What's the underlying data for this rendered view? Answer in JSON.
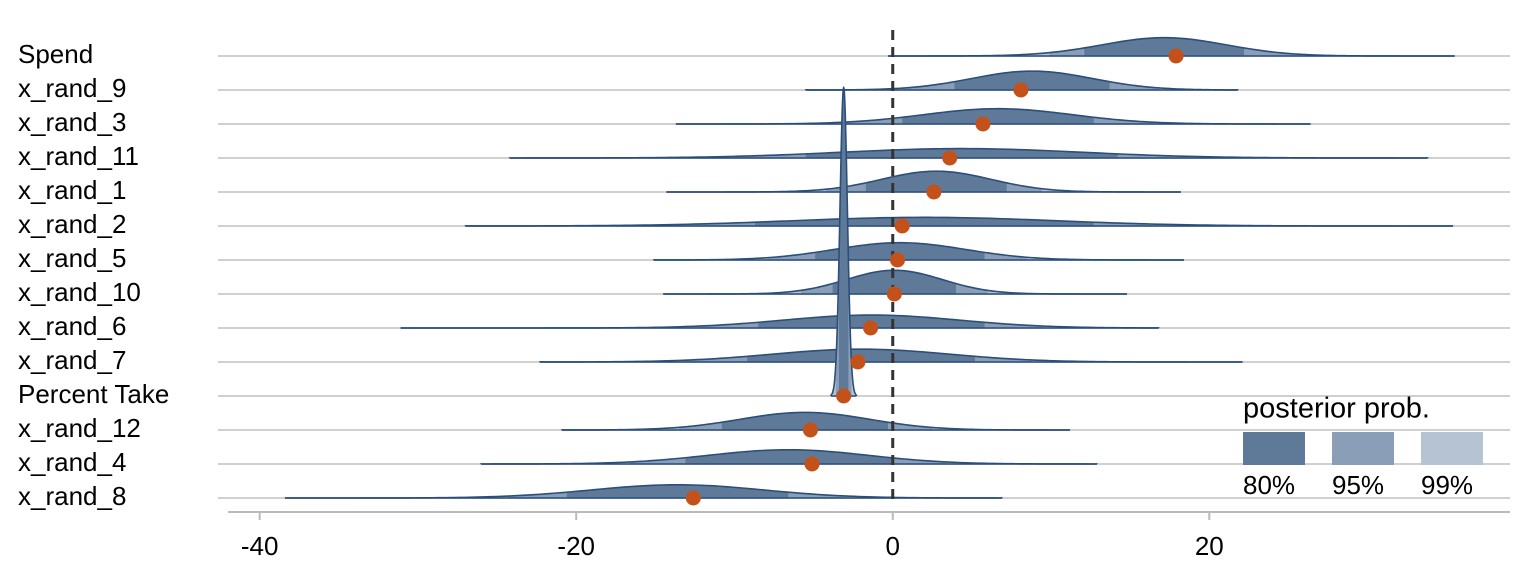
{
  "chart_data": {
    "type": "ridgeline",
    "series": [
      {
        "name": "Spend",
        "median": 17.9,
        "intervals": [
          [
            12.1,
            22.2
          ],
          [
            9.9,
            25.8
          ],
          [
            7.5,
            28.3
          ]
        ],
        "range": [
          -0.3,
          35.5
        ]
      },
      {
        "name": "x_rand_9",
        "median": 8.1,
        "intervals": [
          [
            3.9,
            13.7
          ],
          [
            0.6,
            16.8
          ],
          [
            -1.8,
            19.1
          ]
        ],
        "range": [
          -5.5,
          21.8
        ]
      },
      {
        "name": "x_rand_3",
        "median": 5.7,
        "intervals": [
          [
            0.6,
            12.7
          ],
          [
            -3.1,
            16.5
          ],
          [
            -6,
            19.4
          ]
        ],
        "range": [
          -13.7,
          26.4
        ]
      },
      {
        "name": "x_rand_11",
        "median": 3.6,
        "intervals": [
          [
            -5.5,
            14.2
          ],
          [
            -11.4,
            18.6
          ],
          [
            -16.2,
            23.4
          ]
        ],
        "range": [
          -24.2,
          33.8
        ]
      },
      {
        "name": "x_rand_1",
        "median": 2.6,
        "intervals": [
          [
            -1.7,
            7.2
          ],
          [
            -4.2,
            9.4
          ],
          [
            -6.4,
            11.6
          ]
        ],
        "range": [
          -14.3,
          18.2
        ]
      },
      {
        "name": "x_rand_2",
        "median": 0.6,
        "intervals": [
          [
            -8.7,
            12.7
          ],
          [
            -15.7,
            16.9
          ],
          [
            -20.8,
            22
          ]
        ],
        "range": [
          -27,
          35.4
        ]
      },
      {
        "name": "x_rand_5",
        "median": 0.3,
        "intervals": [
          [
            -4.9,
            5.8
          ],
          [
            -7.9,
            8.5
          ],
          [
            -10.5,
            11.1
          ]
        ],
        "range": [
          -15.1,
          18.4
        ]
      },
      {
        "name": "x_rand_10",
        "median": 0.1,
        "intervals": [
          [
            -3.8,
            4
          ],
          [
            -5.8,
            6
          ],
          [
            -7.7,
            7.9
          ]
        ],
        "range": [
          -14.5,
          14.8
        ]
      },
      {
        "name": "x_rand_6",
        "median": -1.4,
        "intervals": [
          [
            -8.5,
            5.8
          ],
          [
            -12.4,
            9.6
          ],
          [
            -15.8,
            13
          ]
        ],
        "range": [
          -31.1,
          16.8
        ]
      },
      {
        "name": "x_rand_7",
        "median": -2.2,
        "intervals": [
          [
            -9.2,
            5.2
          ],
          [
            -13.2,
            8.8
          ],
          [
            -16.6,
            12.2
          ]
        ],
        "range": [
          -22.3,
          22.1
        ]
      },
      {
        "name": "Percent Take",
        "median": -3.1,
        "intervals": [
          [
            -3.4,
            -2.8
          ],
          [
            -3.6,
            -2.6
          ],
          [
            -3.8,
            -2.4
          ]
        ],
        "range": [
          -3.9,
          -2.3
        ]
      },
      {
        "name": "x_rand_12",
        "median": -5.2,
        "intervals": [
          [
            -10.8,
            -0.3
          ],
          [
            -13.5,
            2.5
          ],
          [
            -16.1,
            5.1
          ]
        ],
        "range": [
          -20.9,
          11.2
        ]
      },
      {
        "name": "x_rand_4",
        "median": -5.1,
        "intervals": [
          [
            -13.1,
            -0.1
          ],
          [
            -16.6,
            3.4
          ],
          [
            -19.7,
            6.5
          ]
        ],
        "range": [
          -26,
          12.9
        ]
      },
      {
        "name": "x_rand_8",
        "median": -12.6,
        "intervals": [
          [
            -20.6,
            -6.6
          ],
          [
            -24.3,
            -2.9
          ],
          [
            -27.7,
            0.5
          ]
        ],
        "range": [
          -38.4,
          6.9
        ]
      }
    ],
    "xlim": [
      -42,
      39
    ],
    "xticks": [
      -40,
      -20,
      0,
      20
    ],
    "vline": 0,
    "grid": true,
    "outline_color": "#2b4e7a",
    "point_color": "#c4511a",
    "legend": {
      "title": "posterior prob.",
      "levels": [
        {
          "label": "80%",
          "color": "#5f7a99"
        },
        {
          "label": "95%",
          "color": "#8a9fb7"
        },
        {
          "label": "99%",
          "color": "#b5c3d3"
        }
      ]
    }
  }
}
